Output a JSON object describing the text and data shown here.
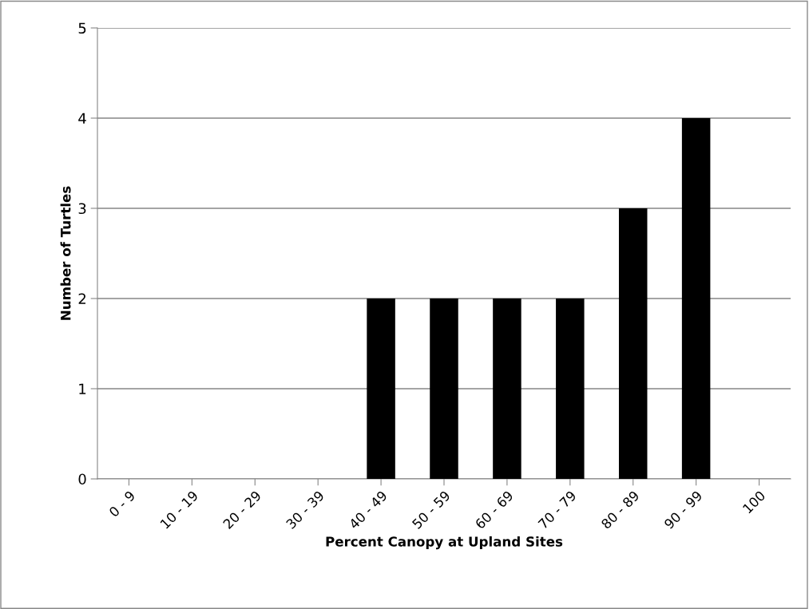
{
  "chart_data": {
    "type": "bar",
    "xlabel": "Percent Canopy at Upland Sites",
    "ylabel": "Number of Turtles",
    "categories": [
      "0 - 9",
      "10 - 19",
      "20 - 29",
      "30 - 39",
      "40 - 49",
      "50 - 59",
      "60 - 69",
      "70 - 79",
      "80 - 89",
      "90 - 99",
      "100"
    ],
    "values": [
      0,
      0,
      0,
      0,
      2,
      2,
      2,
      2,
      3,
      4,
      0
    ],
    "color": "#000000",
    "ylim": [
      0,
      5
    ],
    "yticks": [
      0,
      1,
      2,
      3,
      4,
      5
    ],
    "grid": "y",
    "legend": false
  }
}
